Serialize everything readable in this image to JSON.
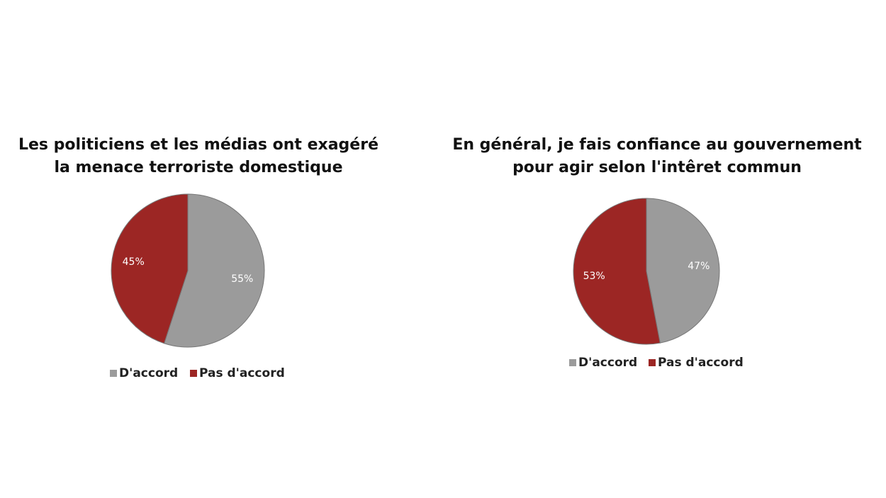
{
  "chart_data": [
    {
      "type": "pie",
      "title": [
        "Les politiciens et les médias ont exagéré",
        "la menace terroriste domestique"
      ],
      "categories": [
        "D'accord",
        "Pas d'accord"
      ],
      "values": [
        55,
        45
      ],
      "value_labels": [
        "55%",
        "45%"
      ],
      "colors": [
        "#9b9b9b",
        "#9c2624"
      ],
      "legend": "bottom"
    },
    {
      "type": "pie",
      "title": [
        "En général, je fais confiance au gouvernement",
        "pour agir selon l'intêret commun"
      ],
      "categories": [
        "D'accord",
        "Pas d'accord"
      ],
      "values": [
        47,
        53
      ],
      "value_labels": [
        "47%",
        "53%"
      ],
      "colors": [
        "#9b9b9b",
        "#9c2624"
      ],
      "legend": "bottom"
    }
  ]
}
